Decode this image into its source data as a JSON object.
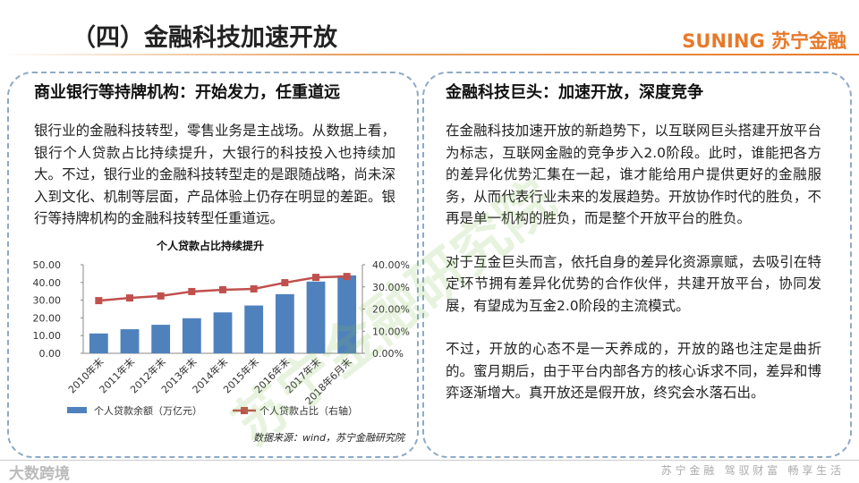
{
  "header": {
    "title": "（四）金融科技加速开放",
    "logo_latin": "SUNING",
    "logo_cn": "苏宁金融"
  },
  "left": {
    "heading": "商业银行等持牌机构：开始发力，任重道远",
    "paragraph": "银行业的金融科技转型，零售业务是主战场。从数据上看，银行个人贷款占比持续提升，大银行的科技投入也持续加大。不过，银行业的金融科技转型走的是跟随战略，尚未深入到文化、机制等层面，产品体验上仍存在明显的差距。银行等持牌机构的金融科技转型任重道远。"
  },
  "chart_data": {
    "type": "bar",
    "title": "个人贷款占比持续提升",
    "categories": [
      "2010年末",
      "2011年末",
      "2012年末",
      "2013年末",
      "2014年末",
      "2015年末",
      "2016年末",
      "2017年末",
      "2018年6月末"
    ],
    "series": [
      {
        "name": "个人贷款余额（万亿元）",
        "type": "bar",
        "color": "#4f81bd",
        "values": [
          11.2,
          13.6,
          16.1,
          19.8,
          23.1,
          27.0,
          33.4,
          40.5,
          44.0
        ]
      },
      {
        "name": "个人贷款占比（右轴）",
        "type": "line",
        "axis": "y2",
        "color": "#c0504d",
        "values": [
          23.8,
          25.0,
          25.9,
          27.9,
          28.7,
          29.1,
          31.9,
          34.3,
          34.7
        ]
      }
    ],
    "ylim": [
      0,
      50
    ],
    "yticks": [
      {
        "value": 0,
        "label": "0.00"
      },
      {
        "value": 10,
        "label": "10.00"
      },
      {
        "value": 20,
        "label": "20.00"
      },
      {
        "value": 30,
        "label": "30.00"
      },
      {
        "value": 40,
        "label": "40.00"
      },
      {
        "value": 50,
        "label": "50.00"
      }
    ],
    "y2lim": [
      0,
      40
    ],
    "y2ticks": [
      {
        "value": 0,
        "label": "0.00%"
      },
      {
        "value": 10,
        "label": "10.00%"
      },
      {
        "value": 20,
        "label": "20.00%"
      },
      {
        "value": 30,
        "label": "30.00%"
      },
      {
        "value": 40,
        "label": "40.00%"
      }
    ],
    "source": "数据来源：wind，苏宁金融研究院",
    "legend": "bottom"
  },
  "right": {
    "heading": "金融科技巨头：加速开放，深度竞争",
    "paragraphs": [
      "在金融科技加速开放的新趋势下，以互联网巨头搭建开放平台为标志，互联网金融的竞争步入2.0阶段。此时，谁能把各方的差异化优势汇集在一起，谁才能给用户提供更好的金融服务，从而代表行业未来的发展趋势。开放协作时代的胜负，不再是单一机构的胜负，而是整个开放平台的胜负。",
      "对于互金巨头而言，依托自身的差异化资源禀赋，去吸引在特定环节拥有差异化优势的合作伙伴，共建开放平台，协同发展，有望成为互金2.0阶段的主流模式。",
      "不过，开放的心态不是一天养成的，开放的路也注定是曲折的。蜜月期后，由于平台内部各方的核心诉求不同，差异和博弈逐渐增大。真开放还是假开放，终究会水落石出。"
    ]
  },
  "watermark": "苏宁金融研究院",
  "footer": {
    "slogan": "苏 宁 金 融   驾 驭 财 富   畅 享 生 活",
    "badge": "大数跨境"
  }
}
